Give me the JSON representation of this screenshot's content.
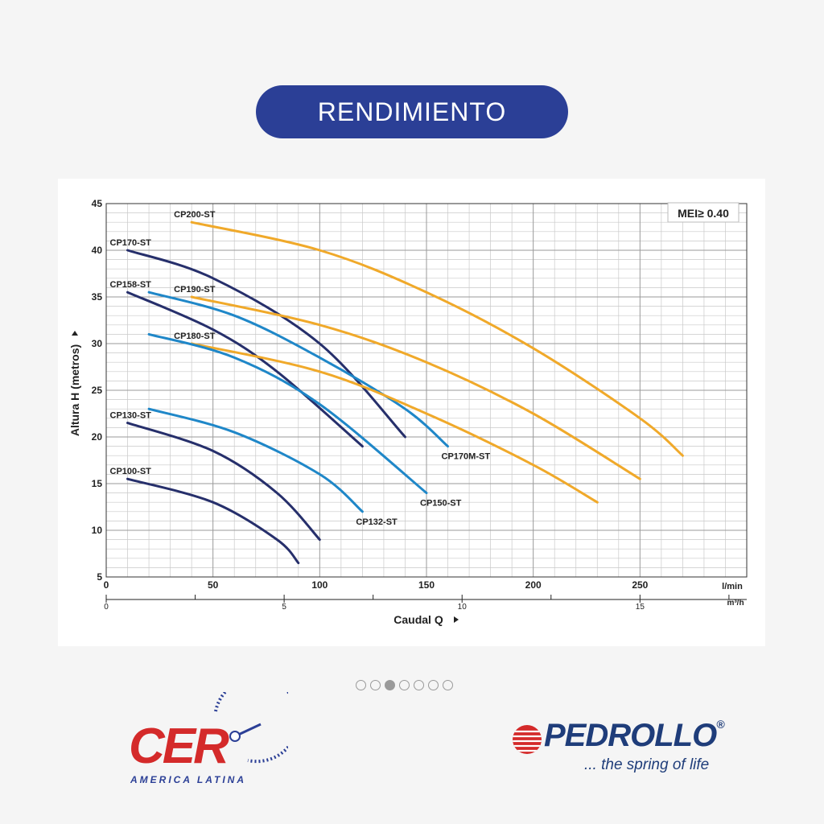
{
  "header": {
    "title": "RENDIMIENTO"
  },
  "carousel": {
    "count": 7,
    "active_index": 2
  },
  "logos": {
    "cer": {
      "text": "CER",
      "subtitle": "AMERICA LATINA"
    },
    "pedrollo": {
      "name": "PEDROLLO",
      "mark": "®",
      "tagline": "... the spring of life"
    }
  },
  "colors": {
    "navy": "#262f6b",
    "blue": "#1f87c8",
    "orange": "#f0a92a",
    "header_bg": "#2b3f96",
    "cer_red": "#d42a2a",
    "pedrollo_blue": "#1f3d7a",
    "grid": "#c9c9c9"
  },
  "chart_data": {
    "type": "line",
    "annotation": "MEI≥ 0.40",
    "ylabel": "Altura H (metros)",
    "xlabel": "Caudal Q",
    "x_unit_primary": "l/min",
    "x_unit_secondary": "m³/h",
    "xlim": [
      0,
      300
    ],
    "ylim": [
      5,
      45
    ],
    "x_ticks": [
      0,
      50,
      100,
      150,
      200,
      250
    ],
    "y_ticks": [
      5,
      10,
      15,
      20,
      25,
      30,
      35,
      40,
      45
    ],
    "secondary_ticks": [
      0,
      5,
      10,
      15
    ],
    "grid": true,
    "series": [
      {
        "name": "CP200-ST",
        "color": "orange",
        "x": [
          40,
          100,
          150,
          200,
          250,
          270
        ],
        "y": [
          43,
          40,
          35.5,
          29.5,
          22,
          18
        ],
        "label_at": "start"
      },
      {
        "name": "CP170-ST",
        "color": "navy",
        "x": [
          10,
          50,
          100,
          140
        ],
        "y": [
          40,
          37,
          30,
          20
        ],
        "label_at": "start"
      },
      {
        "name": "CP190-ST",
        "color": "orange",
        "x": [
          40,
          100,
          150,
          200,
          250
        ],
        "y": [
          35,
          32,
          28,
          22.5,
          15.5
        ],
        "label_at": "start"
      },
      {
        "name": "CP158-ST",
        "color": "navy",
        "x": [
          10,
          50,
          80,
          120
        ],
        "y": [
          35.5,
          31.5,
          27,
          19
        ],
        "label_at": "start"
      },
      {
        "name": "CP170M-ST",
        "color": "blue",
        "x": [
          20,
          60,
          100,
          140,
          160
        ],
        "y": [
          35.5,
          33,
          28.5,
          23,
          19
        ],
        "label_at": "end"
      },
      {
        "name": "CP180-ST",
        "color": "orange",
        "x": [
          40,
          100,
          150,
          200,
          230
        ],
        "y": [
          30,
          27,
          22.5,
          17,
          13
        ],
        "label_at": "start"
      },
      {
        "name": "CP150-ST",
        "color": "blue",
        "x": [
          20,
          60,
          100,
          150
        ],
        "y": [
          31,
          28.5,
          23.5,
          14
        ],
        "label_at": "end"
      },
      {
        "name": "CP132-ST",
        "color": "blue",
        "x": [
          20,
          60,
          100,
          120
        ],
        "y": [
          23,
          20.5,
          16,
          12
        ],
        "label_at": "end"
      },
      {
        "name": "CP130-ST",
        "color": "navy",
        "x": [
          10,
          50,
          80,
          100
        ],
        "y": [
          21.5,
          18.5,
          14,
          9
        ],
        "label_at": "start"
      },
      {
        "name": "CP100-ST",
        "color": "navy",
        "x": [
          10,
          50,
          80,
          90
        ],
        "y": [
          15.5,
          13,
          9,
          6.5
        ],
        "label_at": "start"
      }
    ]
  }
}
